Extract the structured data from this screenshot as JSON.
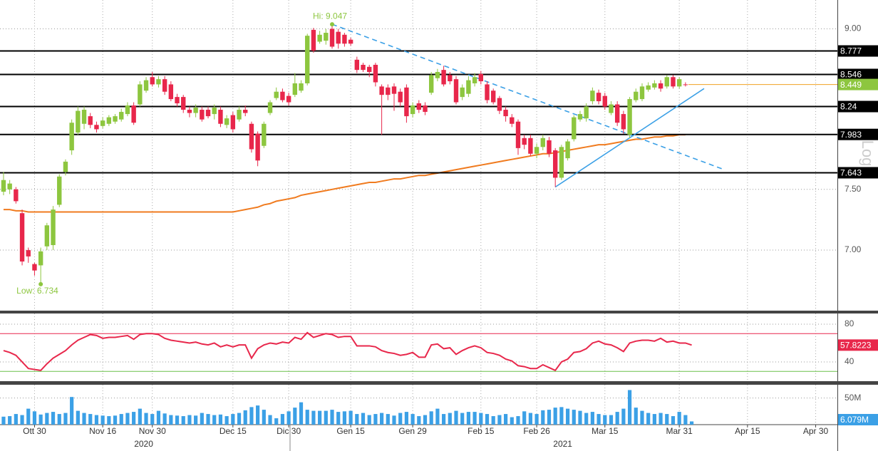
{
  "chart_data": [
    {
      "type": "candlestick",
      "log": true,
      "scale_label": "Log",
      "xlim": [
        -0.57,
        134.5
      ],
      "xticks": [
        {
          "value": 5,
          "label": "Ott 30"
        },
        {
          "value": 16,
          "label": "Nov 16"
        },
        {
          "value": 24,
          "label": "Nov 30"
        },
        {
          "value": 37,
          "label": "Dec 15"
        },
        {
          "value": 46,
          "label": "Dic 30"
        },
        {
          "value": 56,
          "label": "Gen 15"
        },
        {
          "value": 66,
          "label": "Gen 29"
        },
        {
          "value": 77,
          "label": "Feb 15"
        },
        {
          "value": 86,
          "label": "Feb 26"
        },
        {
          "value": 97,
          "label": "Mar 15"
        },
        {
          "value": 109,
          "label": "Mar 31"
        },
        {
          "value": 120,
          "label": "Apr 15"
        },
        {
          "value": 131,
          "label": "Apr 30"
        }
      ],
      "year_labels": [
        {
          "value": 22.6,
          "label": "2020"
        },
        {
          "value": 90.2,
          "label": "2021"
        }
      ],
      "ylim": [
        6.535,
        9.3
      ],
      "yticks": [
        {
          "value": 7.0,
          "label": "7.00"
        },
        {
          "value": 7.5,
          "label": "7.50"
        },
        {
          "value": 9.0,
          "label": "9.00"
        }
      ],
      "grid": true,
      "up_color": "#8dc63f",
      "down_color": "#e8274b",
      "open": [
        7.48,
        7.5,
        7.5,
        7.3,
        7.0,
        6.89,
        6.88,
        7.03,
        7.04,
        7.37,
        7.65,
        7.84,
        8.0,
        8.08,
        8.15,
        8.07,
        8.06,
        8.08,
        8.1,
        8.12,
        8.17,
        8.25,
        8.26,
        8.39,
        8.52,
        8.45,
        8.5,
        8.45,
        8.33,
        8.33,
        8.21,
        8.18,
        8.21,
        8.21,
        8.17,
        8.21,
        8.07,
        8.16,
        8.12,
        8.21,
        8.08,
        7.99,
        7.88,
        8.18,
        8.32,
        8.38,
        8.34,
        8.35,
        8.39,
        8.46,
        8.99,
        8.87,
        8.88,
        9.0,
        8.97,
        8.94,
        8.89,
        8.69,
        8.64,
        8.62,
        8.64,
        8.43,
        8.42,
        8.43,
        8.38,
        8.42,
        8.17,
        8.27,
        8.25,
        8.37,
        8.51,
        8.59,
        8.54,
        8.5,
        8.33,
        8.36,
        8.46,
        8.55,
        8.45,
        8.39,
        8.32,
        8.21,
        8.14,
        8.1,
        7.95,
        7.95,
        7.81,
        7.87,
        7.93,
        7.84,
        7.6,
        7.77,
        7.94,
        8.12,
        8.13,
        8.29,
        8.37,
        8.34,
        8.18,
        8.26,
        8.17,
        7.98,
        8.3,
        8.31,
        8.4,
        8.42,
        8.46,
        8.43,
        8.52,
        8.43,
        8.45
      ],
      "high": [
        7.65,
        7.58,
        7.52,
        7.33,
        7.02,
        6.9,
        7.02,
        7.22,
        7.36,
        7.63,
        7.76,
        8.12,
        8.24,
        8.24,
        8.18,
        8.1,
        8.14,
        8.16,
        8.17,
        8.22,
        8.28,
        8.28,
        8.48,
        8.52,
        8.57,
        8.53,
        8.53,
        8.48,
        8.36,
        8.35,
        8.24,
        8.26,
        8.24,
        8.24,
        8.26,
        8.24,
        8.16,
        8.19,
        8.24,
        8.25,
        8.1,
        8.01,
        8.1,
        8.3,
        8.42,
        8.41,
        8.37,
        8.56,
        8.49,
        8.95,
        9.01,
        8.98,
        9.0,
        9.047,
        9.0,
        8.96,
        8.91,
        8.72,
        8.66,
        8.64,
        8.66,
        8.45,
        8.45,
        8.46,
        8.41,
        8.45,
        8.28,
        8.3,
        8.28,
        8.57,
        8.6,
        8.63,
        8.57,
        8.53,
        8.45,
        8.53,
        8.56,
        8.58,
        8.48,
        8.41,
        8.34,
        8.24,
        8.17,
        8.12,
        7.98,
        7.98,
        7.9,
        7.98,
        7.96,
        7.86,
        7.89,
        7.94,
        8.16,
        8.2,
        8.27,
        8.42,
        8.4,
        8.37,
        8.29,
        8.29,
        8.2,
        8.33,
        8.41,
        8.46,
        8.47,
        8.49,
        8.49,
        8.54,
        8.54,
        8.52,
        8.47
      ],
      "low": [
        7.45,
        7.46,
        7.38,
        6.88,
        6.9,
        6.8,
        6.734,
        7.0,
        7.0,
        7.35,
        7.62,
        7.8,
        7.98,
        8.03,
        8.04,
        8.0,
        8.04,
        8.06,
        8.08,
        8.1,
        8.15,
        8.07,
        8.24,
        8.37,
        8.43,
        8.42,
        8.35,
        8.29,
        8.24,
        8.18,
        8.14,
        8.14,
        8.1,
        8.13,
        8.12,
        8.05,
        8.04,
        8.0,
        8.1,
        8.15,
        7.82,
        7.7,
        7.86,
        8.16,
        8.3,
        8.28,
        8.25,
        8.33,
        8.37,
        8.44,
        8.76,
        8.85,
        8.84,
        8.8,
        8.8,
        8.82,
        8.83,
        8.56,
        8.57,
        8.52,
        8.43,
        7.98,
        8.3,
        8.2,
        8.24,
        8.09,
        8.14,
        8.18,
        8.16,
        8.35,
        8.48,
        8.43,
        8.45,
        8.26,
        8.3,
        8.33,
        8.43,
        8.45,
        8.27,
        8.26,
        8.17,
        8.1,
        8.05,
        7.8,
        7.85,
        7.79,
        7.77,
        7.84,
        7.78,
        7.52,
        7.58,
        7.75,
        7.92,
        8.1,
        8.1,
        8.26,
        8.26,
        8.21,
        8.16,
        8.06,
        7.99,
        7.95,
        8.28,
        8.29,
        8.38,
        8.4,
        8.38,
        8.41,
        8.41,
        8.41,
        8.43
      ],
      "close": [
        7.58,
        7.55,
        7.4,
        6.91,
        6.95,
        6.84,
        6.99,
        7.2,
        7.33,
        7.61,
        7.74,
        8.09,
        8.2,
        8.21,
        8.07,
        8.03,
        8.11,
        8.14,
        8.15,
        8.19,
        8.25,
        8.09,
        8.45,
        8.49,
        8.45,
        8.5,
        8.38,
        8.31,
        8.27,
        8.21,
        8.18,
        8.23,
        8.12,
        8.15,
        8.23,
        8.08,
        8.13,
        8.03,
        8.21,
        8.18,
        7.85,
        7.75,
        8.08,
        8.28,
        8.38,
        8.3,
        8.28,
        8.46,
        8.46,
        8.93,
        8.78,
        8.94,
        8.96,
        8.82,
        8.85,
        8.85,
        8.85,
        8.59,
        8.59,
        8.57,
        8.47,
        8.35,
        8.35,
        8.36,
        8.28,
        8.15,
        8.25,
        8.21,
        8.19,
        8.54,
        8.57,
        8.45,
        8.48,
        8.28,
        8.42,
        8.49,
        8.52,
        8.48,
        8.3,
        8.28,
        8.2,
        8.15,
        8.08,
        7.86,
        7.89,
        7.81,
        7.87,
        7.95,
        7.81,
        7.6,
        7.87,
        7.92,
        8.14,
        8.17,
        8.24,
        8.39,
        8.29,
        8.24,
        8.26,
        8.09,
        8.03,
        8.31,
        8.38,
        8.43,
        8.44,
        8.46,
        8.41,
        8.52,
        8.43,
        8.5,
        8.449
      ],
      "last_color": "#8dc63f",
      "last_line_color": "#f0a020",
      "moving_average": {
        "color": "#f07b1f",
        "values": [
          7.33,
          7.33,
          7.32,
          7.32,
          7.31,
          7.31,
          7.31,
          7.31,
          7.31,
          7.31,
          7.31,
          7.31,
          7.31,
          7.31,
          7.31,
          7.31,
          7.31,
          7.31,
          7.31,
          7.31,
          7.31,
          7.31,
          7.31,
          7.31,
          7.31,
          7.31,
          7.31,
          7.31,
          7.31,
          7.31,
          7.31,
          7.31,
          7.31,
          7.31,
          7.31,
          7.31,
          7.31,
          7.31,
          7.32,
          7.33,
          7.34,
          7.35,
          7.37,
          7.38,
          7.4,
          7.41,
          7.42,
          7.43,
          7.45,
          7.46,
          7.47,
          7.48,
          7.49,
          7.5,
          7.51,
          7.52,
          7.53,
          7.54,
          7.55,
          7.56,
          7.56,
          7.57,
          7.58,
          7.59,
          7.59,
          7.6,
          7.61,
          7.62,
          7.62,
          7.63,
          7.64,
          7.65,
          7.66,
          7.67,
          7.68,
          7.69,
          7.7,
          7.71,
          7.72,
          7.73,
          7.74,
          7.75,
          7.76,
          7.77,
          7.78,
          7.79,
          7.8,
          7.81,
          7.81,
          7.82,
          7.83,
          7.84,
          7.85,
          7.86,
          7.87,
          7.88,
          7.89,
          7.89,
          7.9,
          7.91,
          7.92,
          7.93,
          7.94,
          7.94,
          7.95,
          7.96,
          7.96,
          7.97,
          7.97,
          7.98,
          7.98
        ]
      },
      "levels": [
        8.777,
        8.546,
        8.24,
        7.983,
        7.643
      ],
      "trendlines": [
        {
          "color": "#3ba0e6",
          "style": "dashed",
          "x": [
            53,
            116
          ],
          "y": [
            9.047,
            7.675
          ]
        },
        {
          "color": "#3ba0e6",
          "style": "solid",
          "x": [
            89,
            113
          ],
          "y": [
            7.52,
            8.41
          ]
        }
      ],
      "annotations": [
        {
          "text": "Hi: 9.047",
          "x": 53,
          "y": 9.047
        },
        {
          "text": "Low: 6.734",
          "x": 6,
          "y": 6.734
        }
      ],
      "annotation_color": "#8dc63f"
    },
    {
      "type": "line",
      "xlim": [
        -0.57,
        134.5
      ],
      "ylim": [
        19.6,
        91.3
      ],
      "yticks": [
        40,
        80
      ],
      "grid": true,
      "bands": [
        {
          "value": 70,
          "color": "#e8274b"
        },
        {
          "value": 30,
          "color": "#6cc04a"
        }
      ],
      "series": [
        {
          "color": "#e8274b",
          "values": [
            52,
            50,
            47,
            40,
            33,
            32,
            31,
            38,
            44,
            48,
            52,
            58,
            63,
            66,
            69,
            68,
            65,
            66,
            66,
            67,
            68,
            64,
            69,
            70,
            70,
            69,
            65,
            63,
            62,
            61,
            60,
            61,
            59,
            58,
            60,
            56,
            58,
            56,
            58,
            58,
            44,
            54,
            58,
            60,
            59,
            61,
            60,
            66,
            64,
            71,
            66,
            68,
            70,
            69,
            66,
            67,
            67,
            57,
            57,
            57,
            56,
            52,
            50,
            49,
            47,
            48,
            50,
            45,
            45,
            58,
            59,
            54,
            55,
            48,
            52,
            55,
            57,
            55,
            50,
            49,
            47,
            43,
            41,
            36,
            35,
            33,
            33,
            37,
            34,
            31,
            40,
            43,
            50,
            51,
            54,
            60,
            62,
            59,
            58,
            55,
            51,
            60,
            62,
            63,
            63,
            62,
            65,
            61,
            62,
            60,
            60,
            57.8223
          ]
        }
      ]
    },
    {
      "type": "bar",
      "xlim": [
        -0.57,
        134.5
      ],
      "ylim": [
        0,
        75000000
      ],
      "yticks": [
        {
          "value": 50000000,
          "label": "50M"
        }
      ],
      "grid": true,
      "color": "#3ba0e6",
      "last_label": "6.079M",
      "values": [
        15000000,
        16000000,
        20000000,
        18000000,
        30000000,
        25000000,
        19000000,
        22000000,
        24000000,
        20000000,
        22000000,
        52000000,
        26000000,
        22000000,
        20000000,
        18000000,
        17000000,
        16000000,
        17000000,
        20000000,
        22000000,
        24000000,
        30000000,
        22000000,
        20000000,
        26000000,
        21000000,
        18000000,
        17000000,
        16000000,
        18000000,
        17000000,
        22000000,
        20000000,
        18000000,
        19000000,
        16000000,
        20000000,
        22000000,
        27000000,
        33000000,
        36000000,
        28000000,
        18000000,
        12000000,
        20000000,
        25000000,
        32000000,
        42000000,
        28000000,
        26000000,
        26000000,
        26000000,
        28000000,
        24000000,
        25000000,
        26000000,
        20000000,
        22000000,
        18000000,
        20000000,
        22000000,
        20000000,
        17000000,
        22000000,
        24000000,
        20000000,
        16000000,
        18000000,
        25000000,
        30000000,
        20000000,
        22000000,
        26000000,
        22000000,
        24000000,
        24000000,
        22000000,
        20000000,
        16000000,
        18000000,
        20000000,
        14000000,
        16000000,
        25000000,
        22000000,
        20000000,
        27000000,
        28000000,
        32000000,
        33000000,
        30000000,
        28000000,
        26000000,
        22000000,
        24000000,
        20000000,
        18000000,
        18000000,
        24000000,
        30000000,
        65000000,
        32000000,
        26000000,
        22000000,
        20000000,
        22000000,
        20000000,
        16000000,
        24000000,
        18000000,
        6079000
      ]
    }
  ]
}
